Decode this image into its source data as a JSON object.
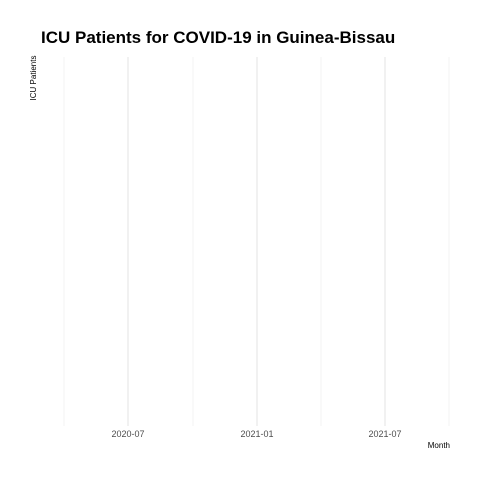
{
  "chart_data": {
    "type": "line",
    "title": "ICU Patients for COVID-19 in Guinea-Bissau",
    "xlabel": "Month",
    "ylabel": "ICU Patients",
    "x_ticks": [
      "2020-07",
      "2021-01",
      "2021-07"
    ],
    "series": [],
    "grid": true,
    "legend": "none"
  }
}
